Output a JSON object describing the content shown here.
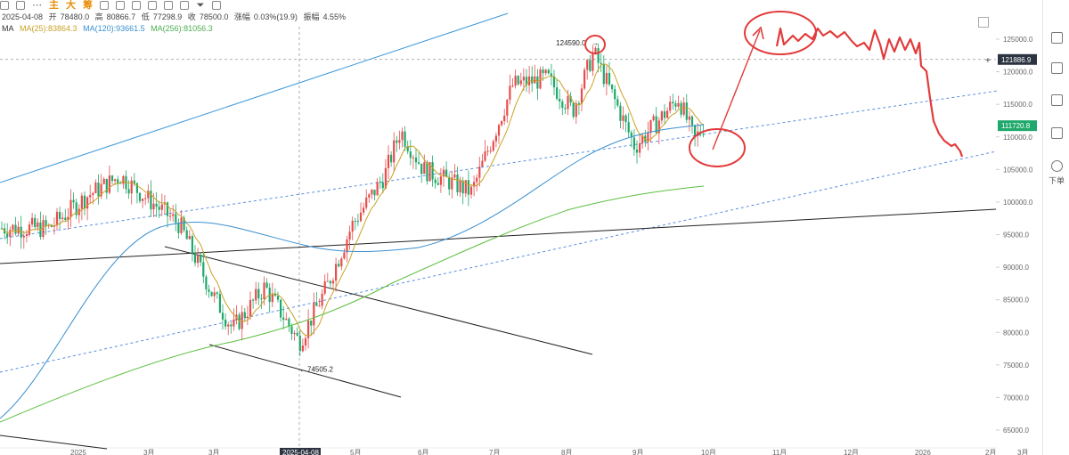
{
  "toolbar": {
    "items": [
      "主",
      "大",
      "筹"
    ]
  },
  "info": {
    "date": "2025-04-08",
    "open_label": "开",
    "open": "78480.0",
    "high_label": "高",
    "high": "80866.7",
    "low_label": "低",
    "low": "77298.9",
    "close_label": "收",
    "close": "78500.0",
    "change_label": "涨幅",
    "change": "0.03%(19.9)",
    "amp_label": "振幅",
    "amp": "4.55%"
  },
  "ma": {
    "label": "MA",
    "ma25": "MA(25):83864.3",
    "ma120": "MA(120):93661.5",
    "ma256": "MA(256):81056.3"
  },
  "rail": {
    "label": "下单"
  },
  "colors": {
    "up": "#e84c4c",
    "down": "#1fa86b",
    "ma25": "#c9a227",
    "ma120": "#3a8fcf",
    "ma256": "#5cbf3f",
    "annotation": "#e23b3b"
  },
  "chart_data": {
    "type": "candlestick",
    "ylim": [
      63000,
      128000
    ],
    "y_ticks": [
      "125000.0",
      "120000.0",
      "115000.0",
      "110000.0",
      "105000.0",
      "100000.0",
      "95000.0",
      "90000.0",
      "85000.0",
      "80000.0",
      "75000.0",
      "70000.0",
      "65000.0"
    ],
    "x_ticks": [
      "2025",
      "3月",
      "3月",
      "2025-04-08",
      "5月",
      "6月",
      "7月",
      "8月",
      "9月",
      "10月",
      "11月",
      "12月",
      "2026",
      "2月",
      "3月"
    ],
    "price_tags": {
      "crosshair": "121886.9",
      "last": "111720.8"
    },
    "annotations": {
      "high": "124590.0",
      "low": "74505.2"
    },
    "series_points": {
      "close_path": [
        [
          "2024-12-20",
          96000
        ],
        [
          "2025-01-06",
          101000
        ],
        [
          "2025-01-20",
          104000
        ],
        [
          "2025-02-01",
          100500
        ],
        [
          "2025-02-15",
          96500
        ],
        [
          "2025-03-01",
          86000
        ],
        [
          "2025-03-10",
          80500
        ],
        [
          "2025-03-24",
          87000
        ],
        [
          "2025-04-08",
          78500
        ],
        [
          "2025-04-20",
          87000
        ],
        [
          "2025-05-01",
          96500
        ],
        [
          "2025-05-15",
          104000
        ],
        [
          "2025-05-22",
          111000
        ],
        [
          "2025-06-01",
          105000
        ],
        [
          "2025-06-22",
          101500
        ],
        [
          "2025-07-10",
          118000
        ],
        [
          "2025-07-25",
          119000
        ],
        [
          "2025-08-05",
          114000
        ],
        [
          "2025-08-14",
          123000
        ],
        [
          "2025-08-24",
          115000
        ],
        [
          "2025-09-01",
          108500
        ],
        [
          "2025-09-10",
          112000
        ],
        [
          "2025-09-20",
          116000
        ],
        [
          "2025-09-27",
          109500
        ],
        [
          "2025-10-01",
          111720
        ]
      ]
    }
  }
}
